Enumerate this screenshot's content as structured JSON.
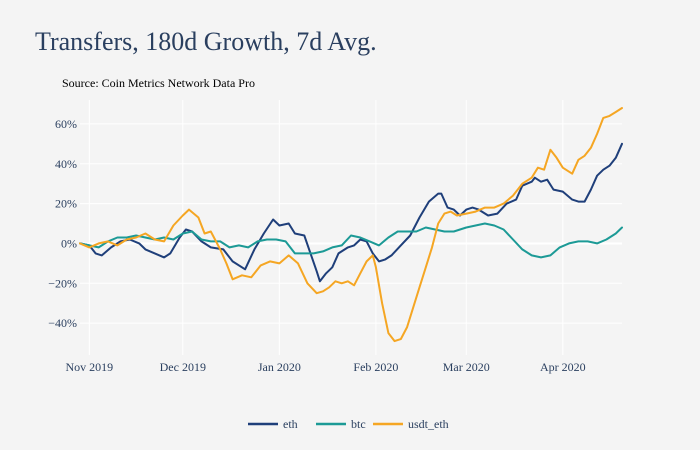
{
  "chart_data": {
    "type": "line",
    "title": "Transfers, 180d Growth, 7d Avg.",
    "subtitle": "Source: Coin Metrics Network Data Pro",
    "xlabel": "",
    "ylabel": "",
    "x_range": [
      "2019-10-29",
      "2020-04-20"
    ],
    "ylim": [
      -56,
      72
    ],
    "y_ticks": [
      -40,
      -20,
      0,
      20,
      40,
      60
    ],
    "y_tick_labels": [
      "−40%",
      "−20%",
      "0%",
      "20%",
      "40%",
      "60%"
    ],
    "x_ticks": [
      "2019-11-01",
      "2019-12-01",
      "2020-01-01",
      "2020-02-01",
      "2020-03-01",
      "2020-04-01"
    ],
    "x_tick_labels": [
      "Nov 2019",
      "Dec 2019",
      "Jan 2020",
      "Feb 2020",
      "Mar 2020",
      "Apr 2020"
    ],
    "grid": true,
    "legend_position": "bottom-center",
    "series": [
      {
        "name": "eth",
        "color": "#1f3f7a",
        "points": [
          [
            "2019-10-29",
            0
          ],
          [
            "2019-11-01",
            -1
          ],
          [
            "2019-11-03",
            -5
          ],
          [
            "2019-11-05",
            -6
          ],
          [
            "2019-11-08",
            -2
          ],
          [
            "2019-11-11",
            1
          ],
          [
            "2019-11-14",
            2
          ],
          [
            "2019-11-17",
            0
          ],
          [
            "2019-11-19",
            -3
          ],
          [
            "2019-11-22",
            -5
          ],
          [
            "2019-11-25",
            -7
          ],
          [
            "2019-11-27",
            -5
          ],
          [
            "2019-11-30",
            3
          ],
          [
            "2019-12-02",
            7
          ],
          [
            "2019-12-04",
            6
          ],
          [
            "2019-12-07",
            1
          ],
          [
            "2019-12-10",
            -2
          ],
          [
            "2019-12-14",
            -3
          ],
          [
            "2019-12-17",
            -9
          ],
          [
            "2019-12-21",
            -13
          ],
          [
            "2019-12-24",
            -3
          ],
          [
            "2019-12-27",
            5
          ],
          [
            "2019-12-30",
            12
          ],
          [
            "2020-01-01",
            9
          ],
          [
            "2020-01-04",
            10
          ],
          [
            "2020-01-06",
            5
          ],
          [
            "2020-01-09",
            4
          ],
          [
            "2020-01-11",
            -5
          ],
          [
            "2020-01-13",
            -14
          ],
          [
            "2020-01-14",
            -19
          ],
          [
            "2020-01-16",
            -15
          ],
          [
            "2020-01-18",
            -12
          ],
          [
            "2020-01-20",
            -5
          ],
          [
            "2020-01-23",
            -2
          ],
          [
            "2020-01-25",
            -1
          ],
          [
            "2020-01-27",
            2
          ],
          [
            "2020-01-29",
            1
          ],
          [
            "2020-01-31",
            -5
          ],
          [
            "2020-02-02",
            -9
          ],
          [
            "2020-02-04",
            -8
          ],
          [
            "2020-02-06",
            -6
          ],
          [
            "2020-02-09",
            -1
          ],
          [
            "2020-02-12",
            4
          ],
          [
            "2020-02-15",
            13
          ],
          [
            "2020-02-18",
            21
          ],
          [
            "2020-02-21",
            25
          ],
          [
            "2020-02-22",
            25
          ],
          [
            "2020-02-24",
            18
          ],
          [
            "2020-02-26",
            17
          ],
          [
            "2020-02-28",
            14
          ],
          [
            "2020-03-01",
            17
          ],
          [
            "2020-03-03",
            18
          ],
          [
            "2020-03-05",
            17
          ],
          [
            "2020-03-08",
            14
          ],
          [
            "2020-03-11",
            15
          ],
          [
            "2020-03-14",
            20
          ],
          [
            "2020-03-17",
            22
          ],
          [
            "2020-03-19",
            29
          ],
          [
            "2020-03-22",
            31
          ],
          [
            "2020-03-23",
            33
          ],
          [
            "2020-03-25",
            31
          ],
          [
            "2020-03-27",
            32
          ],
          [
            "2020-03-29",
            27
          ],
          [
            "2020-04-01",
            26
          ],
          [
            "2020-04-04",
            22
          ],
          [
            "2020-04-06",
            21
          ],
          [
            "2020-04-08",
            21
          ],
          [
            "2020-04-10",
            27
          ],
          [
            "2020-04-12",
            34
          ],
          [
            "2020-04-14",
            37
          ],
          [
            "2020-04-16",
            39
          ],
          [
            "2020-04-18",
            43
          ],
          [
            "2020-04-20",
            50
          ]
        ]
      },
      {
        "name": "btc",
        "color": "#1c9a96",
        "points": [
          [
            "2019-10-29",
            0
          ],
          [
            "2019-11-01",
            -1
          ],
          [
            "2019-11-04",
            -2
          ],
          [
            "2019-11-07",
            1
          ],
          [
            "2019-11-10",
            3
          ],
          [
            "2019-11-13",
            3
          ],
          [
            "2019-11-16",
            4
          ],
          [
            "2019-11-19",
            3
          ],
          [
            "2019-11-22",
            2
          ],
          [
            "2019-11-25",
            3
          ],
          [
            "2019-11-28",
            2
          ],
          [
            "2019-12-01",
            5
          ],
          [
            "2019-12-04",
            6
          ],
          [
            "2019-12-07",
            2
          ],
          [
            "2019-12-10",
            1
          ],
          [
            "2019-12-13",
            1
          ],
          [
            "2019-12-16",
            -2
          ],
          [
            "2019-12-19",
            -1
          ],
          [
            "2019-12-22",
            -2
          ],
          [
            "2019-12-25",
            1
          ],
          [
            "2019-12-28",
            2
          ],
          [
            "2019-12-31",
            2
          ],
          [
            "2020-01-03",
            1
          ],
          [
            "2020-01-06",
            -5
          ],
          [
            "2020-01-09",
            -5
          ],
          [
            "2020-01-12",
            -5
          ],
          [
            "2020-01-15",
            -4
          ],
          [
            "2020-01-18",
            -2
          ],
          [
            "2020-01-21",
            -1
          ],
          [
            "2020-01-24",
            4
          ],
          [
            "2020-01-27",
            3
          ],
          [
            "2020-01-30",
            1
          ],
          [
            "2020-02-02",
            -1
          ],
          [
            "2020-02-05",
            3
          ],
          [
            "2020-02-08",
            6
          ],
          [
            "2020-02-11",
            6
          ],
          [
            "2020-02-14",
            6
          ],
          [
            "2020-02-17",
            8
          ],
          [
            "2020-02-20",
            7
          ],
          [
            "2020-02-23",
            6
          ],
          [
            "2020-02-26",
            6
          ],
          [
            "2020-03-01",
            8
          ],
          [
            "2020-03-04",
            9
          ],
          [
            "2020-03-07",
            10
          ],
          [
            "2020-03-10",
            9
          ],
          [
            "2020-03-13",
            7
          ],
          [
            "2020-03-16",
            2
          ],
          [
            "2020-03-19",
            -3
          ],
          [
            "2020-03-22",
            -6
          ],
          [
            "2020-03-25",
            -7
          ],
          [
            "2020-03-28",
            -6
          ],
          [
            "2020-03-31",
            -2
          ],
          [
            "2020-04-03",
            0
          ],
          [
            "2020-04-06",
            1
          ],
          [
            "2020-04-09",
            1
          ],
          [
            "2020-04-12",
            0
          ],
          [
            "2020-04-15",
            2
          ],
          [
            "2020-04-18",
            5
          ],
          [
            "2020-04-20",
            8
          ]
        ]
      },
      {
        "name": "usdt_eth",
        "color": "#f5a623",
        "points": [
          [
            "2019-10-29",
            0
          ],
          [
            "2019-11-01",
            -2
          ],
          [
            "2019-11-04",
            0
          ],
          [
            "2019-11-07",
            1
          ],
          [
            "2019-11-10",
            -1
          ],
          [
            "2019-11-13",
            2
          ],
          [
            "2019-11-16",
            3
          ],
          [
            "2019-11-19",
            5
          ],
          [
            "2019-11-22",
            2
          ],
          [
            "2019-11-25",
            1
          ],
          [
            "2019-11-28",
            9
          ],
          [
            "2019-12-01",
            14
          ],
          [
            "2019-12-03",
            17
          ],
          [
            "2019-12-06",
            13
          ],
          [
            "2019-12-08",
            5
          ],
          [
            "2019-12-10",
            6
          ],
          [
            "2019-12-13",
            -3
          ],
          [
            "2019-12-15",
            -10
          ],
          [
            "2019-12-17",
            -18
          ],
          [
            "2019-12-20",
            -16
          ],
          [
            "2019-12-23",
            -17
          ],
          [
            "2019-12-26",
            -11
          ],
          [
            "2019-12-29",
            -9
          ],
          [
            "2020-01-01",
            -10
          ],
          [
            "2020-01-04",
            -6
          ],
          [
            "2020-01-07",
            -10
          ],
          [
            "2020-01-10",
            -20
          ],
          [
            "2020-01-13",
            -25
          ],
          [
            "2020-01-15",
            -24
          ],
          [
            "2020-01-17",
            -22
          ],
          [
            "2020-01-19",
            -19
          ],
          [
            "2020-01-21",
            -20
          ],
          [
            "2020-01-23",
            -19
          ],
          [
            "2020-01-25",
            -21
          ],
          [
            "2020-01-27",
            -15
          ],
          [
            "2020-01-29",
            -9
          ],
          [
            "2020-01-31",
            -6
          ],
          [
            "2020-02-01",
            -12
          ],
          [
            "2020-02-03",
            -30
          ],
          [
            "2020-02-05",
            -45
          ],
          [
            "2020-02-07",
            -49
          ],
          [
            "2020-02-09",
            -48
          ],
          [
            "2020-02-11",
            -42
          ],
          [
            "2020-02-13",
            -32
          ],
          [
            "2020-02-15",
            -22
          ],
          [
            "2020-02-17",
            -12
          ],
          [
            "2020-02-19",
            -2
          ],
          [
            "2020-02-21",
            10
          ],
          [
            "2020-02-23",
            15
          ],
          [
            "2020-02-25",
            16
          ],
          [
            "2020-02-27",
            14
          ],
          [
            "2020-03-01",
            15
          ],
          [
            "2020-03-04",
            16
          ],
          [
            "2020-03-07",
            18
          ],
          [
            "2020-03-10",
            18
          ],
          [
            "2020-03-13",
            20
          ],
          [
            "2020-03-16",
            24
          ],
          [
            "2020-03-19",
            30
          ],
          [
            "2020-03-22",
            33
          ],
          [
            "2020-03-24",
            38
          ],
          [
            "2020-03-26",
            37
          ],
          [
            "2020-03-28",
            47
          ],
          [
            "2020-03-30",
            43
          ],
          [
            "2020-04-01",
            38
          ],
          [
            "2020-04-04",
            35
          ],
          [
            "2020-04-06",
            42
          ],
          [
            "2020-04-08",
            44
          ],
          [
            "2020-04-10",
            48
          ],
          [
            "2020-04-12",
            55
          ],
          [
            "2020-04-14",
            63
          ],
          [
            "2020-04-16",
            64
          ],
          [
            "2020-04-18",
            66
          ],
          [
            "2020-04-20",
            68
          ]
        ]
      }
    ]
  }
}
